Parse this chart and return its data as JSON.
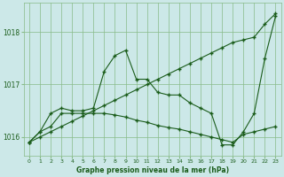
{
  "title": "Graphe pression niveau de la mer (hPa)",
  "bg_color": "#cce8e8",
  "grid_color": "#88bb88",
  "line_color": "#1a5c1a",
  "xlim": [
    -0.5,
    23.5
  ],
  "ylim": [
    1015.65,
    1018.55
  ],
  "yticks": [
    1016,
    1017,
    1018
  ],
  "xticks": [
    0,
    1,
    2,
    3,
    4,
    5,
    6,
    7,
    8,
    9,
    10,
    11,
    12,
    13,
    14,
    15,
    16,
    17,
    18,
    19,
    20,
    21,
    22,
    23
  ],
  "s_diagonal": [
    1015.9,
    1016.0,
    1016.1,
    1016.2,
    1016.3,
    1016.4,
    1016.5,
    1016.6,
    1016.7,
    1016.8,
    1016.9,
    1017.0,
    1017.1,
    1017.2,
    1017.3,
    1017.4,
    1017.5,
    1017.6,
    1017.7,
    1017.8,
    1017.85,
    1017.9,
    1018.15,
    1018.35
  ],
  "s_wiggly": [
    1015.9,
    1016.1,
    1016.45,
    1016.55,
    1016.5,
    1016.5,
    1016.55,
    1017.25,
    1017.55,
    1017.65,
    1017.1,
    1017.1,
    1016.85,
    1016.8,
    1016.8,
    1016.65,
    1016.55,
    1016.45,
    1015.85,
    1015.85,
    1016.1,
    1016.45,
    1017.5,
    1018.3
  ],
  "s_flat": [
    1015.9,
    1016.1,
    1016.2,
    1016.45,
    1016.45,
    1016.45,
    1016.45,
    1016.45,
    1016.42,
    1016.38,
    1016.32,
    1016.28,
    1016.22,
    1016.18,
    1016.15,
    1016.1,
    1016.05,
    1016.0,
    1015.95,
    1015.9,
    1016.05,
    1016.1,
    1016.15,
    1016.2
  ]
}
